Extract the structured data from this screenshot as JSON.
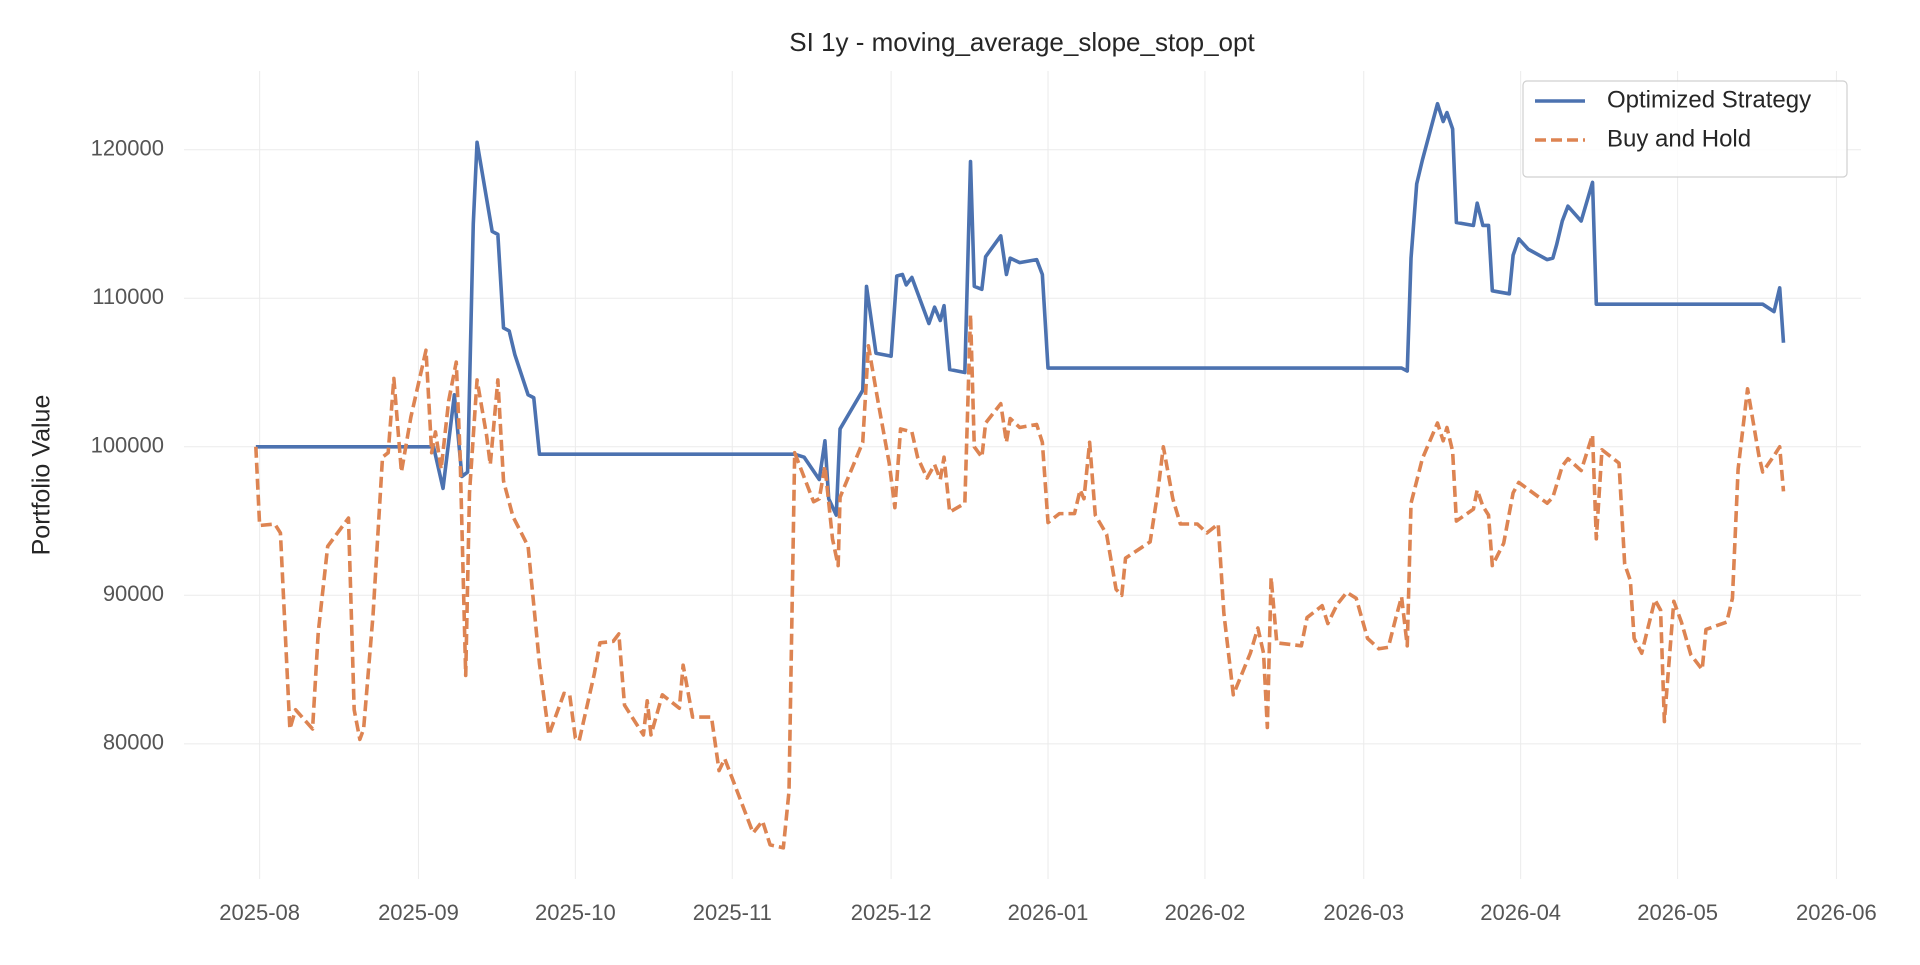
{
  "chart_data": {
    "type": "line",
    "title": "SI 1y - moving_average_slope_stop_opt",
    "y_label": "Portfolio Value",
    "xlim": [
      2025.543,
      2026.43
    ],
    "ylim": [
      70900,
      125300
    ],
    "xticks": [
      {
        "value": 2025.583,
        "label": "2025-08"
      },
      {
        "value": 2025.667,
        "label": "2025-09"
      },
      {
        "value": 2025.75,
        "label": "2025-10"
      },
      {
        "value": 2025.833,
        "label": "2025-11"
      },
      {
        "value": 2025.917,
        "label": "2025-12"
      },
      {
        "value": 2026.0,
        "label": "2026-01"
      },
      {
        "value": 2026.083,
        "label": "2026-02"
      },
      {
        "value": 2026.167,
        "label": "2026-03"
      },
      {
        "value": 2026.25,
        "label": "2026-04"
      },
      {
        "value": 2026.333,
        "label": "2026-05"
      },
      {
        "value": 2026.417,
        "label": "2026-06"
      }
    ],
    "yticks": [
      80000,
      90000,
      100000,
      110000,
      120000
    ],
    "grid": true,
    "legend": "upper right",
    "series": [
      {
        "name": "Optimized Strategy",
        "color": "#4c72b0",
        "dash": "solid",
        "x": [
          2025.581,
          2025.675,
          2025.68,
          2025.686,
          2025.69,
          2025.693,
          2025.696,
          2025.698,
          2025.706,
          2025.709,
          2025.712,
          2025.715,
          2025.718,
          2025.725,
          2025.728,
          2025.731,
          2025.866,
          2025.871,
          2025.879,
          2025.882,
          2025.884,
          2025.888,
          2025.89,
          2025.902,
          2025.904,
          2025.909,
          2025.917,
          2025.92,
          2025.923,
          2025.925,
          2025.928,
          2025.937,
          2025.94,
          2025.943,
          2025.945,
          2025.948,
          2025.956,
          2025.959,
          2025.961,
          2025.965,
          2025.967,
          2025.975,
          2025.978,
          2025.98,
          2025.985,
          2025.994,
          2025.997,
          2026.0,
          2026.187,
          2026.19,
          2026.192,
          2026.195,
          2026.198,
          2026.206,
          2026.209,
          2026.211,
          2026.214,
          2026.216,
          2026.225,
          2026.227,
          2026.23,
          2026.233,
          2026.235,
          2026.244,
          2026.246,
          2026.249,
          2026.254,
          2026.264,
          2026.267,
          2026.269,
          2026.272,
          2026.275,
          2026.282,
          2026.288,
          2026.29,
          2026.378,
          2026.384,
          2026.387,
          2026.389
        ],
        "values": [
          100000,
          100000,
          97200,
          103500,
          98000,
          98300,
          115000,
          120500,
          114500,
          114300,
          108000,
          107800,
          106200,
          103500,
          103300,
          99500,
          99500,
          99300,
          97800,
          100400,
          96500,
          95400,
          101200,
          103800,
          110800,
          106300,
          106100,
          111500,
          111600,
          110900,
          111400,
          108300,
          109400,
          108500,
          109500,
          105200,
          105000,
          119200,
          110800,
          110600,
          112800,
          114200,
          111600,
          112700,
          112400,
          112600,
          111600,
          105300,
          105300,
          105100,
          112700,
          117700,
          119300,
          123100,
          121900,
          122500,
          121400,
          115100,
          114900,
          116400,
          114900,
          114900,
          110500,
          110300,
          112900,
          114000,
          113300,
          112600,
          112700,
          113600,
          115200,
          116200,
          115200,
          117800,
          109600,
          109600,
          109100,
          110700,
          107000
        ]
      },
      {
        "name": "Buy and Hold",
        "color": "#dd8452",
        "dash": "dashed",
        "x": [
          2025.581,
          2025.583,
          2025.591,
          2025.594,
          2025.599,
          2025.602,
          2025.611,
          2025.614,
          2025.619,
          2025.63,
          2025.633,
          2025.636,
          2025.638,
          2025.643,
          2025.648,
          2025.651,
          2025.654,
          2025.658,
          2025.663,
          2025.671,
          2025.674,
          2025.676,
          2025.679,
          2025.683,
          2025.687,
          2025.689,
          2025.692,
          2025.694,
          2025.698,
          2025.703,
          2025.705,
          2025.709,
          2025.712,
          2025.717,
          2025.725,
          2025.731,
          2025.736,
          2025.744,
          2025.747,
          2025.75,
          2025.752,
          2025.76,
          2025.763,
          2025.77,
          2025.773,
          2025.776,
          2025.786,
          2025.788,
          2025.79,
          2025.796,
          2025.805,
          2025.807,
          2025.812,
          2025.822,
          2025.826,
          2025.829,
          2025.844,
          2025.849,
          2025.853,
          2025.86,
          2025.863,
          2025.866,
          2025.876,
          2025.879,
          2025.882,
          2025.886,
          2025.889,
          2025.89,
          2025.902,
          2025.905,
          2025.91,
          2025.916,
          2025.919,
          2025.922,
          2025.928,
          2025.931,
          2025.936,
          2025.94,
          2025.943,
          2025.945,
          2025.948,
          2025.956,
          2025.959,
          2025.961,
          2025.965,
          2025.967,
          2025.975,
          2025.978,
          2025.98,
          2025.985,
          2025.994,
          2025.997,
          2026.0,
          2026.006,
          2026.014,
          2026.017,
          2026.019,
          2026.022,
          2026.025,
          2026.031,
          2026.036,
          2026.039,
          2026.041,
          2026.054,
          2026.058,
          2026.061,
          2026.066,
          2026.07,
          2026.079,
          2026.084,
          2026.09,
          2026.093,
          2026.098,
          2026.107,
          2026.111,
          2026.114,
          2026.116,
          2026.118,
          2026.121,
          2026.134,
          2026.137,
          2026.145,
          2026.148,
          2026.153,
          2026.158,
          2026.163,
          2026.169,
          2026.175,
          2026.18,
          2026.184,
          2026.187,
          2026.19,
          2026.192,
          2026.198,
          2026.206,
          2026.209,
          2026.211,
          2026.214,
          2026.216,
          2026.225,
          2026.227,
          2026.23,
          2026.233,
          2026.235,
          2026.241,
          2026.246,
          2026.249,
          2026.264,
          2026.267,
          2026.272,
          2026.275,
          2026.282,
          2026.288,
          2026.29,
          2026.293,
          2026.302,
          2026.305,
          2026.308,
          2026.31,
          2026.314,
          2026.321,
          2026.324,
          2026.326,
          2026.331,
          2026.335,
          2026.34,
          2026.346,
          2026.348,
          2026.359,
          2026.362,
          2026.365,
          2026.37,
          2026.376,
          2026.378,
          2026.384,
          2026.387,
          2026.389
        ],
        "values": [
          100000,
          94700,
          94800,
          94200,
          81000,
          82300,
          81000,
          87500,
          93300,
          95200,
          82300,
          80300,
          81000,
          88700,
          99300,
          99600,
          104600,
          98300,
          102000,
          106500,
          99600,
          101000,
          98500,
          103100,
          105700,
          99600,
          84600,
          96900,
          104500,
          100800,
          98800,
          104500,
          97700,
          95300,
          93300,
          85400,
          80600,
          83400,
          83300,
          80400,
          80200,
          84700,
          86800,
          86900,
          87400,
          82600,
          80600,
          82900,
          80600,
          83300,
          82400,
          85300,
          81800,
          81800,
          78200,
          79000,
          74000,
          74800,
          73200,
          73000,
          76800,
          99600,
          96300,
          96500,
          98700,
          93800,
          92000,
          96600,
          100300,
          106800,
          103100,
          98900,
          95900,
          101200,
          101000,
          99300,
          97900,
          98800,
          97800,
          99300,
          95600,
          96200,
          108900,
          100000,
          99300,
          101600,
          102900,
          100300,
          101900,
          101300,
          101500,
          100300,
          94900,
          95500,
          95500,
          97100,
          96500,
          100300,
          95400,
          94100,
          90400,
          90000,
          92500,
          93600,
          96900,
          100000,
          96500,
          94800,
          94800,
          94200,
          94800,
          88800,
          83300,
          86100,
          87800,
          86100,
          81100,
          91200,
          86800,
          86600,
          88500,
          89300,
          88100,
          89400,
          90200,
          89800,
          87100,
          86400,
          86500,
          88500,
          89900,
          86600,
          96200,
          99200,
          101600,
          100400,
          101300,
          99700,
          95000,
          95800,
          97100,
          96000,
          95400,
          92000,
          93500,
          96900,
          97600,
          96200,
          96600,
          98700,
          99200,
          98400,
          100800,
          93800,
          99800,
          98900,
          92100,
          91000,
          87100,
          86100,
          89700,
          89000,
          81500,
          89600,
          88200,
          86000,
          85000,
          87700,
          88200,
          89800,
          98500,
          103900,
          99400,
          98300,
          99400,
          100000,
          97000
        ]
      }
    ]
  }
}
